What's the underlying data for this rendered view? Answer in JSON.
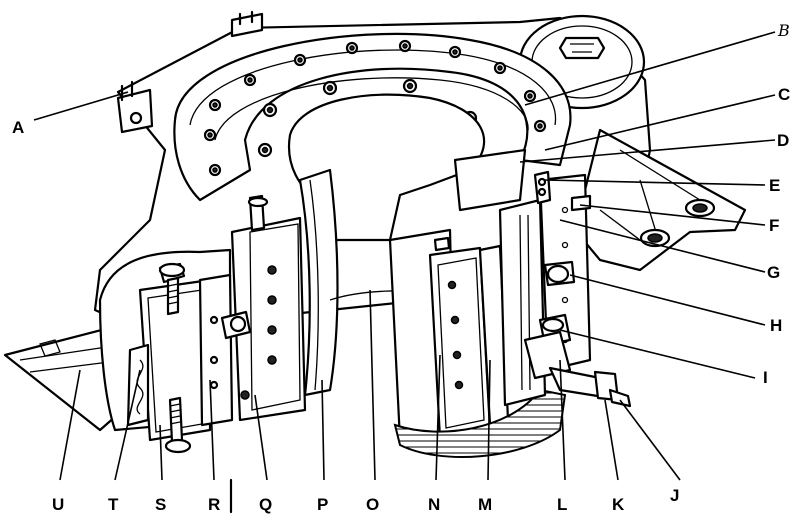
{
  "labels": {
    "A": "A",
    "B": "B",
    "C": "C",
    "D": "D",
    "E": "E",
    "F": "F",
    "G": "G",
    "H": "H",
    "I": "I",
    "J": "J",
    "K": "K",
    "L": "L",
    "M": "M",
    "N": "N",
    "O": "O",
    "P": "P",
    "Q": "Q",
    "R": "R",
    "S": "S",
    "T": "T",
    "U": "U"
  }
}
